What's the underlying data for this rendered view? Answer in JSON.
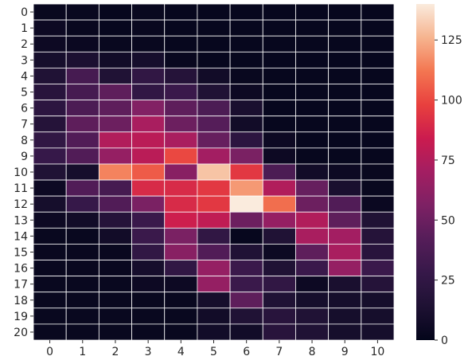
{
  "chart_data": {
    "type": "heatmap",
    "x_labels": [
      "0",
      "1",
      "2",
      "3",
      "4",
      "5",
      "6",
      "7",
      "8",
      "9",
      "10"
    ],
    "y_labels": [
      "0",
      "1",
      "2",
      "3",
      "4",
      "5",
      "6",
      "7",
      "8",
      "9",
      "10",
      "11",
      "12",
      "13",
      "14",
      "15",
      "16",
      "17",
      "18",
      "19",
      "20"
    ],
    "values": [
      [
        3,
        3,
        2,
        3,
        2,
        2,
        2,
        2,
        2,
        2,
        2
      ],
      [
        5,
        3,
        2,
        3,
        2,
        2,
        2,
        2,
        2,
        2,
        2
      ],
      [
        5,
        4,
        3,
        3,
        2,
        2,
        2,
        2,
        2,
        2,
        2
      ],
      [
        10,
        13,
        8,
        10,
        3,
        2,
        2,
        2,
        2,
        2,
        2
      ],
      [
        15,
        35,
        15,
        25,
        18,
        8,
        3,
        2,
        2,
        2,
        2
      ],
      [
        20,
        35,
        45,
        25,
        30,
        15,
        5,
        2,
        2,
        2,
        2
      ],
      [
        22,
        38,
        45,
        58,
        45,
        38,
        12,
        2,
        2,
        2,
        2
      ],
      [
        18,
        45,
        50,
        72,
        50,
        42,
        8,
        2,
        2,
        2,
        2
      ],
      [
        25,
        40,
        75,
        78,
        72,
        48,
        22,
        5,
        2,
        2,
        2
      ],
      [
        28,
        40,
        65,
        78,
        100,
        70,
        55,
        5,
        2,
        2,
        2
      ],
      [
        15,
        10,
        115,
        105,
        60,
        130,
        95,
        38,
        8,
        5,
        3
      ],
      [
        5,
        40,
        35,
        90,
        90,
        95,
        120,
        75,
        48,
        12,
        3
      ],
      [
        10,
        28,
        40,
        55,
        90,
        95,
        140,
        110,
        50,
        40,
        4
      ],
      [
        5,
        8,
        18,
        30,
        85,
        80,
        50,
        65,
        75,
        45,
        15
      ],
      [
        3,
        3,
        8,
        30,
        55,
        25,
        2,
        15,
        72,
        70,
        18
      ],
      [
        3,
        3,
        3,
        25,
        60,
        40,
        15,
        5,
        45,
        72,
        20
      ],
      [
        3,
        3,
        3,
        10,
        25,
        65,
        30,
        15,
        30,
        65,
        30
      ],
      [
        3,
        3,
        3,
        5,
        5,
        65,
        30,
        25,
        5,
        12,
        18
      ],
      [
        3,
        3,
        3,
        3,
        3,
        10,
        45,
        15,
        10,
        10,
        10
      ],
      [
        3,
        3,
        3,
        3,
        3,
        8,
        15,
        20,
        15,
        10,
        10
      ],
      [
        3,
        3,
        3,
        3,
        3,
        8,
        8,
        20,
        15,
        10,
        10
      ]
    ],
    "vmin": 0,
    "vmax": 140,
    "colorbar_ticks": [
      0,
      25,
      50,
      75,
      100,
      125
    ],
    "colormap": "rocket",
    "cell_border_color": "#ffffff",
    "title": "",
    "xlabel": "",
    "ylabel": ""
  }
}
